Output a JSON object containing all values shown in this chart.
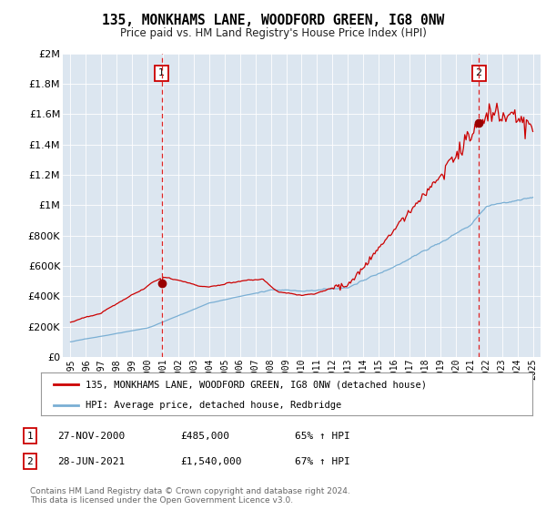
{
  "title": "135, MONKHAMS LANE, WOODFORD GREEN, IG8 0NW",
  "subtitle": "Price paid vs. HM Land Registry's House Price Index (HPI)",
  "plot_bg_color": "#dce6f0",
  "red_line_color": "#cc0000",
  "blue_line_color": "#7aafd4",
  "dashed_line_color": "#dd2222",
  "legend_label_red": "135, MONKHAMS LANE, WOODFORD GREEN, IG8 0NW (detached house)",
  "legend_label_blue": "HPI: Average price, detached house, Redbridge",
  "marker1_date_x": 2000.91,
  "marker2_date_x": 2021.49,
  "marker1_label": "1",
  "marker2_label": "2",
  "marker1_y": 485000,
  "marker2_y": 1540000,
  "table_rows": [
    [
      "1",
      "27-NOV-2000",
      "£485,000",
      "65% ↑ HPI"
    ],
    [
      "2",
      "28-JUN-2021",
      "£1,540,000",
      "67% ↑ HPI"
    ]
  ],
  "footer": "Contains HM Land Registry data © Crown copyright and database right 2024.\nThis data is licensed under the Open Government Licence v3.0.",
  "ylim": [
    0,
    2000000
  ],
  "yticks": [
    0,
    200000,
    400000,
    600000,
    800000,
    1000000,
    1200000,
    1400000,
    1600000,
    1800000,
    2000000
  ],
  "xmin": 1994.5,
  "xmax": 2025.5,
  "xticks": [
    1995,
    1996,
    1997,
    1998,
    1999,
    2000,
    2001,
    2002,
    2003,
    2004,
    2005,
    2006,
    2007,
    2008,
    2009,
    2010,
    2011,
    2012,
    2013,
    2014,
    2015,
    2016,
    2017,
    2018,
    2019,
    2020,
    2021,
    2022,
    2023,
    2024,
    2025
  ]
}
